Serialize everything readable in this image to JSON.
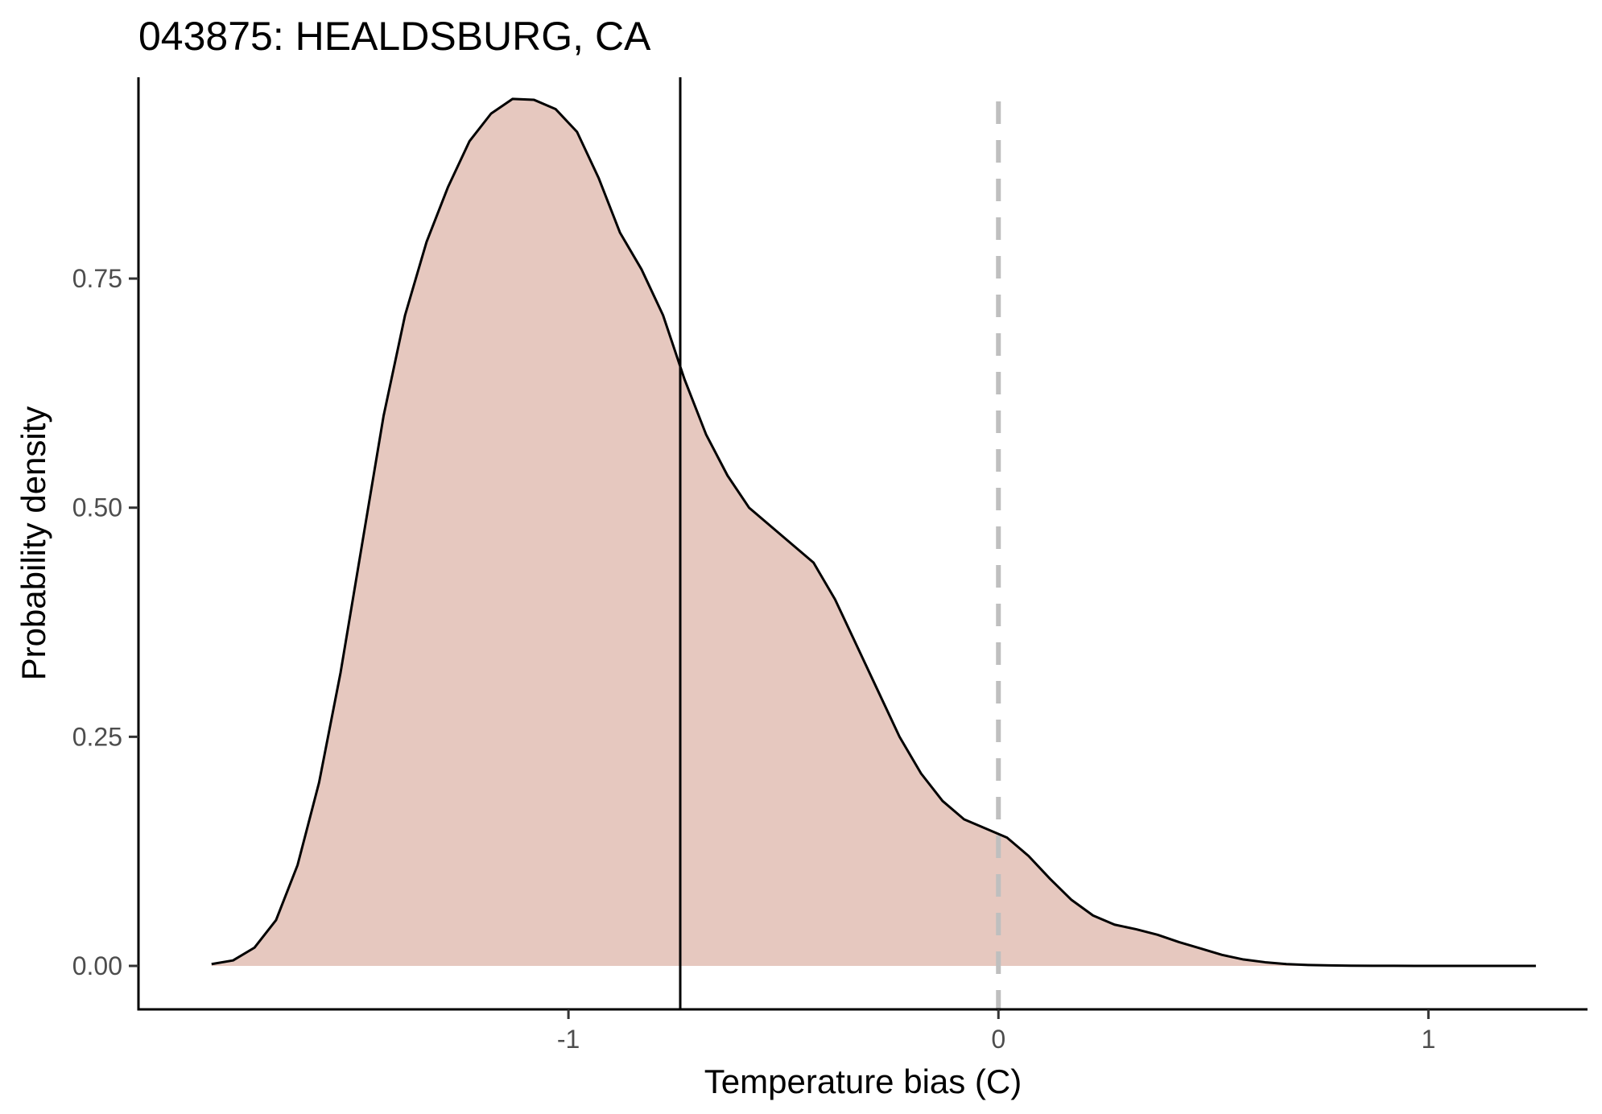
{
  "chart_data": {
    "type": "area",
    "title": "043875: HEALDSBURG, CA",
    "xlabel": "Temperature bias (C)",
    "ylabel": "Probability density",
    "xlim": [
      -2.0,
      1.37
    ],
    "ylim": [
      -0.095,
      2.0
    ],
    "x_ticks": [
      -1,
      0,
      1
    ],
    "x_tick_labels": [
      "-1",
      "0",
      "1"
    ],
    "y_ticks": [
      0.0,
      0.25,
      0.5,
      0.75
    ],
    "y_tick_labels": [
      "0.00",
      "0.25",
      "0.50",
      "0.75"
    ],
    "grid": false,
    "fill_color": "#e6c8bf",
    "line_color": "#000000",
    "reference_lines": [
      {
        "x": -0.74,
        "style": "solid",
        "color": "#000000"
      },
      {
        "x": 0.0,
        "style": "dashed",
        "color": "#bfbfbf"
      }
    ],
    "series": [
      {
        "x": [
          -1.83,
          -1.78,
          -1.73,
          -1.68,
          -1.63,
          -1.58,
          -1.53,
          -1.48,
          -1.43,
          -1.38,
          -1.33,
          -1.28,
          -1.23,
          -1.18,
          -1.13,
          -1.08,
          -1.03,
          -0.98,
          -0.93,
          -0.88,
          -0.83,
          -0.78,
          -0.73,
          -0.68,
          -0.63,
          -0.58,
          -0.53,
          -0.48,
          -0.43,
          -0.38,
          -0.33,
          -0.28,
          -0.23,
          -0.18,
          -0.13,
          -0.08,
          -0.03,
          0.02,
          0.07,
          0.12,
          0.17,
          0.22,
          0.27,
          0.32,
          0.37,
          0.42,
          0.47,
          0.52,
          0.57,
          0.62,
          0.67,
          0.72,
          0.77,
          0.82,
          0.87,
          0.92,
          0.97,
          1.02,
          1.07,
          1.12,
          1.17,
          1.22,
          1.25
        ],
        "values": [
          0.002,
          0.006,
          0.02,
          0.05,
          0.11,
          0.2,
          0.32,
          0.46,
          0.6,
          0.71,
          0.79,
          0.85,
          0.9,
          0.93,
          0.946,
          0.945,
          0.935,
          0.91,
          0.86,
          0.8,
          0.76,
          0.71,
          0.64,
          0.58,
          0.535,
          0.5,
          0.48,
          0.46,
          0.44,
          0.4,
          0.35,
          0.3,
          0.25,
          0.21,
          0.18,
          0.16,
          0.15,
          0.14,
          0.12,
          0.095,
          0.072,
          0.055,
          0.045,
          0.04,
          0.034,
          0.026,
          0.019,
          0.012,
          0.007,
          0.004,
          0.002,
          0.001,
          0.0005,
          0.0002,
          0.0001,
          0.0001,
          0.0,
          0.0,
          0.0,
          0.0,
          0.0,
          0.0,
          0.0
        ]
      }
    ]
  }
}
